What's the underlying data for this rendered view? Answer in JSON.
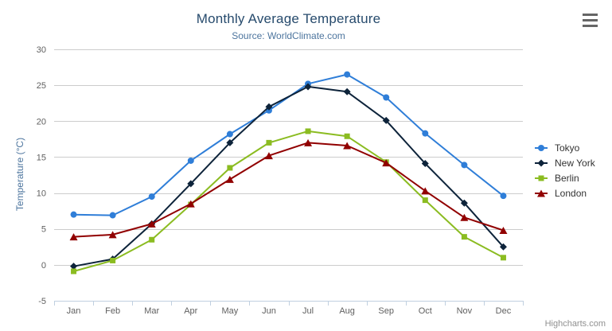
{
  "chart_data": {
    "type": "line",
    "title": "Monthly Average Temperature",
    "subtitle": "Source: WorldClimate.com",
    "xlabel": "",
    "ylabel": "Temperature (°C)",
    "categories": [
      "Jan",
      "Feb",
      "Mar",
      "Apr",
      "May",
      "Jun",
      "Jul",
      "Aug",
      "Sep",
      "Oct",
      "Nov",
      "Dec"
    ],
    "ylim": [
      -5,
      30
    ],
    "yticks": [
      -5,
      0,
      5,
      10,
      15,
      20,
      25,
      30
    ],
    "grid": true,
    "legend_position": "right",
    "series": [
      {
        "name": "Tokyo",
        "color": "#2f7ed8",
        "marker": "circle",
        "values": [
          7.0,
          6.9,
          9.5,
          14.5,
          18.2,
          21.5,
          25.2,
          26.5,
          23.3,
          18.3,
          13.9,
          9.6
        ]
      },
      {
        "name": "New York",
        "color": "#0d233a",
        "marker": "diamond",
        "values": [
          -0.2,
          0.8,
          5.7,
          11.3,
          17.0,
          22.0,
          24.8,
          24.1,
          20.1,
          14.1,
          8.6,
          2.5
        ]
      },
      {
        "name": "Berlin",
        "color": "#8bbc21",
        "marker": "square",
        "values": [
          -0.9,
          0.6,
          3.5,
          8.4,
          13.5,
          17.0,
          18.6,
          17.9,
          14.3,
          9.0,
          3.9,
          1.0
        ]
      },
      {
        "name": "London",
        "color": "#910000",
        "marker": "triangle",
        "values": [
          3.9,
          4.2,
          5.7,
          8.5,
          11.9,
          15.2,
          17.0,
          16.6,
          14.2,
          10.3,
          6.6,
          4.8
        ]
      }
    ],
    "axis_colors": {
      "grid_line": "#cccccc",
      "axis_line": "#c0d0e0",
      "tick_label": "#606060"
    }
  },
  "export_menu": {
    "icon": "hamburger-icon"
  },
  "credits": {
    "label": "Highcharts.com"
  }
}
